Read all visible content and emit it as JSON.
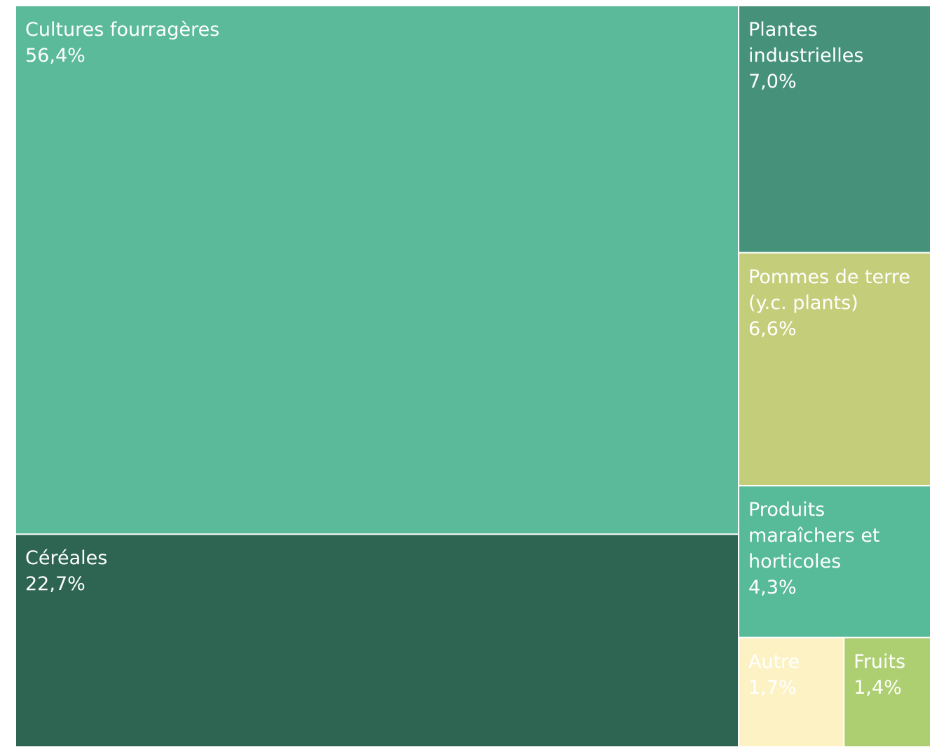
{
  "chart_data": {
    "type": "treemap",
    "categories": [
      "Cultures fourragères",
      "Céréales",
      "Plantes industrielles",
      "Pommes de terre (y.c. plants)",
      "Produits maraîchers et horticoles",
      "Autre",
      "Fruits"
    ],
    "values": [
      56.4,
      22.7,
      7.0,
      6.6,
      4.3,
      1.7,
      1.4
    ],
    "value_labels": [
      "56,4%",
      "22,7%",
      "7,0%",
      "6,6%",
      "4,3%",
      "1,7%",
      "1,4%"
    ],
    "colors": [
      "#5aba99",
      "#2e6452",
      "#45917a",
      "#c4ce7a",
      "#57ba98",
      "#fdf2c4",
      "#aecf71"
    ]
  }
}
